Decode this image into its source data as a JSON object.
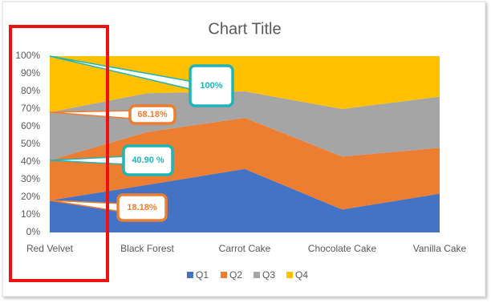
{
  "chart_data": {
    "type": "stacked_area_100",
    "title": "Chart Title",
    "categories": [
      "Red Velvet",
      "Black Forest",
      "Carrot Cake",
      "Chocolate Cake",
      "Vanilla Cake"
    ],
    "series": [
      {
        "name": "Q1",
        "color": "#4472c4",
        "values": [
          18.18,
          27,
          36,
          13,
          22
        ]
      },
      {
        "name": "Q2",
        "color": "#ed7d31",
        "values": [
          22.72,
          30,
          29,
          30,
          26
        ]
      },
      {
        "name": "Q3",
        "color": "#a5a5a5",
        "values": [
          27.28,
          22,
          15,
          27,
          29
        ]
      },
      {
        "name": "Q4",
        "color": "#ffc000",
        "values": [
          31.82,
          21,
          20,
          30,
          23
        ]
      }
    ],
    "ylim": [
      0,
      100
    ],
    "yticks": [
      {
        "value": 0,
        "label": "0%"
      },
      {
        "value": 10,
        "label": "10%"
      },
      {
        "value": 20,
        "label": "20%"
      },
      {
        "value": 30,
        "label": "30%"
      },
      {
        "value": 40,
        "label": "40%"
      },
      {
        "value": 50,
        "label": "50%"
      },
      {
        "value": 60,
        "label": "60%"
      },
      {
        "value": 70,
        "label": "70%"
      },
      {
        "value": 80,
        "label": "80%"
      },
      {
        "value": 90,
        "label": "90%"
      },
      {
        "value": 100,
        "label": "100%"
      }
    ],
    "legend": "bottom",
    "annotations": [
      {
        "text": "100%",
        "value": 100,
        "color": "#1fb5b8"
      },
      {
        "text": "68.18%",
        "value": 68.18,
        "color": "#ed7d31"
      },
      {
        "text": "40.90 %",
        "value": 40.9,
        "color": "#1fb5b8"
      },
      {
        "text": "18.18%",
        "value": 18.18,
        "color": "#ed7d31"
      }
    ]
  }
}
